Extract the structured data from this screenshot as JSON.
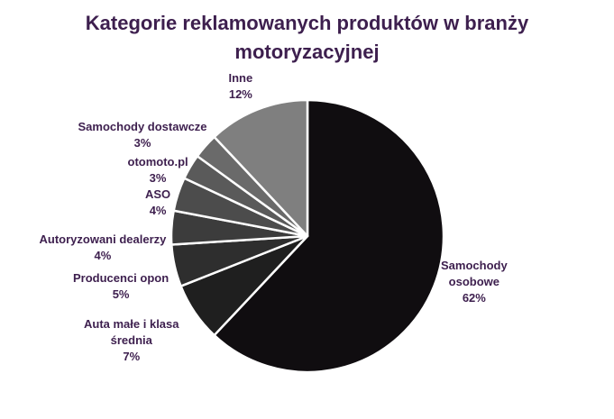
{
  "chart_data": {
    "type": "pie",
    "title_lines": [
      "Kategorie reklamowanych produktów w branży",
      "motoryzacyjnej"
    ],
    "slices": [
      {
        "label_lines": [
          "Samochody",
          "osobowe"
        ],
        "value": 62,
        "value_label": "62%",
        "color": "#100d10"
      },
      {
        "label_lines": [
          "Auta małe i klasa",
          "średnia"
        ],
        "value": 7,
        "value_label": "7%",
        "color": "#1f1f1f"
      },
      {
        "label_lines": [
          "Producenci opon"
        ],
        "value": 5,
        "value_label": "5%",
        "color": "#2e2e2e"
      },
      {
        "label_lines": [
          "Autoryzowani dealerzy"
        ],
        "value": 4,
        "value_label": "4%",
        "color": "#3c3c3c"
      },
      {
        "label_lines": [
          "ASO"
        ],
        "value": 4,
        "value_label": "4%",
        "color": "#4c4c4c"
      },
      {
        "label_lines": [
          "otomoto.pl"
        ],
        "value": 3,
        "value_label": "3%",
        "color": "#5a5a5a"
      },
      {
        "label_lines": [
          "Samochody dostawcze"
        ],
        "value": 3,
        "value_label": "3%",
        "color": "#6a6a6a"
      },
      {
        "label_lines": [
          "Inne"
        ],
        "value": 12,
        "value_label": "12%",
        "color": "#7f7f7f"
      }
    ],
    "label_color": "#3d1f4e",
    "title_color": "#3d1f4e",
    "slice_border_color": "#ffffff"
  }
}
